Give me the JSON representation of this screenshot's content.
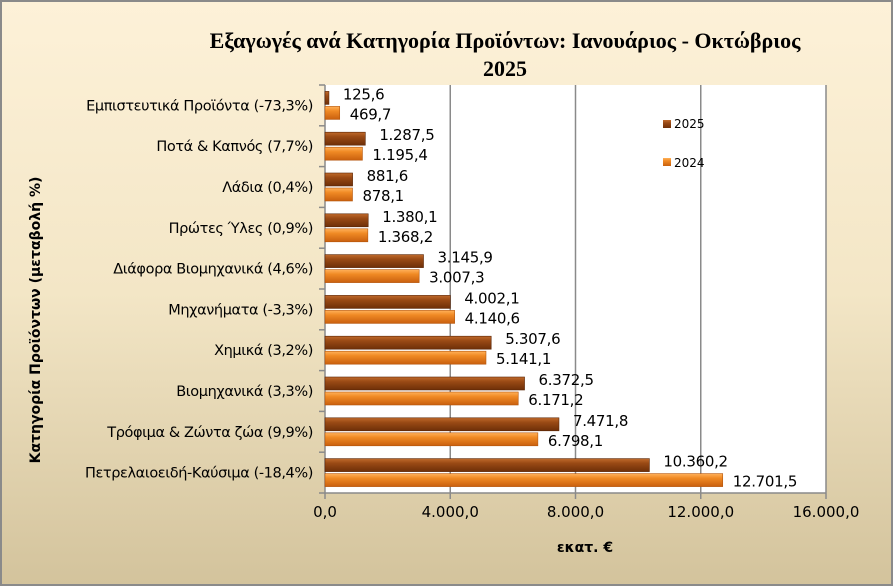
{
  "chart_data": {
    "type": "bar",
    "orientation": "horizontal",
    "title": "Εξαγωγές ανά Κατηγορία Προϊόντων:  Ιανουάριος - Οκτώβριος 2025",
    "title_lines": [
      "Εξαγωγές ανά Κατηγορία Προϊόντων:  Ιανουάριος - Οκτώβριος",
      "2025"
    ],
    "xlabel": "εκατ. €",
    "ylabel": "Κατηγορία Προϊόντων (μεταβολή %)",
    "xlim": [
      0,
      16000
    ],
    "xticks": [
      0,
      4000,
      8000,
      12000,
      16000
    ],
    "xtick_labels": [
      "0,0",
      "4.000,0",
      "8.000,0",
      "12.000,0",
      "16.000,0"
    ],
    "grid": true,
    "legend_position": "right",
    "categories": [
      "Εμπιστευτικά Προϊόντα (-73,3%)",
      "Ποτά & Καπνός (7,7%)",
      "Λάδια (0,4%)",
      "Πρώτες Ύλες (0,9%)",
      "Διάφορα Βιομηχανικά (4,6%)",
      "Μηχανήματα (-3,3%)",
      "Χημικά (3,2%)",
      "Βιομηχανικά (3,3%)",
      "Τρόφιμα & Ζώντα ζώα (9,9%)",
      "Πετρελαιοειδή-Καύσιμα (-18,4%)"
    ],
    "series": [
      {
        "name": "2025",
        "color": "#8e4312",
        "values": [
          125.6,
          1287.5,
          881.6,
          1380.1,
          3145.9,
          4002.1,
          5307.6,
          6372.5,
          7471.8,
          10360.2
        ],
        "labels": [
          "125,6",
          "1.287,5",
          "881,6",
          "1.380,1",
          "3.145,9",
          "4.002,1",
          "5.307,6",
          "6.372,5",
          "7.471,8",
          "10.360,2"
        ]
      },
      {
        "name": "2024",
        "color": "#ee8424",
        "values": [
          469.7,
          1195.4,
          878.1,
          1368.2,
          3007.3,
          4140.6,
          5141.1,
          6171.2,
          6798.1,
          12701.5
        ],
        "labels": [
          "469,7",
          "1.195,4",
          "878,1",
          "1.368,2",
          "3.007,3",
          "4.140,6",
          "5.141,1",
          "6.171,2",
          "6.798,1",
          "12.701,5"
        ]
      }
    ]
  }
}
